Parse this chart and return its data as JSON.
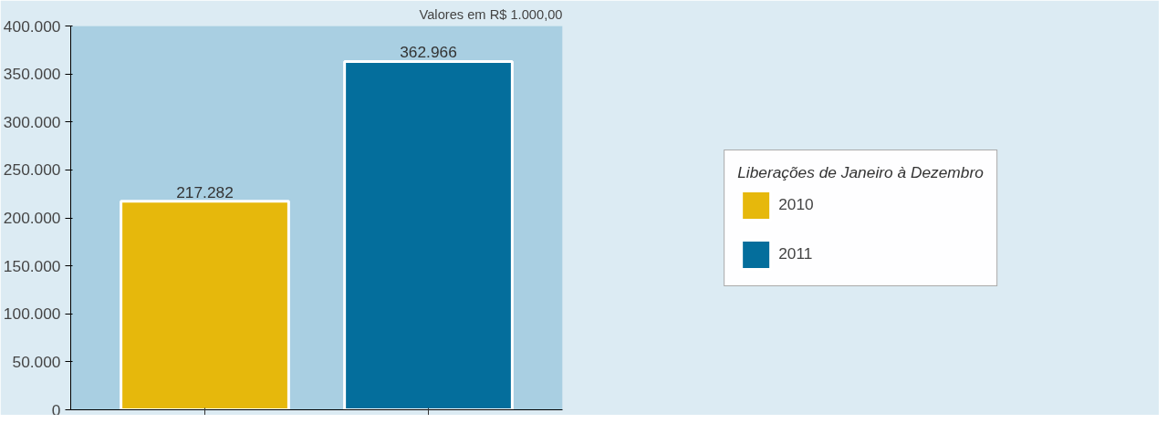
{
  "chart_data": {
    "type": "bar",
    "categories": [
      null,
      null
    ],
    "series": [
      {
        "name": "2010",
        "color": "#e6b80c",
        "values": [
          217282,
          null
        ],
        "value_labels": [
          "217.282",
          null
        ]
      },
      {
        "name": "2011",
        "color": "#046e9c",
        "values": [
          null,
          362966
        ],
        "value_labels": [
          null,
          "362.966"
        ]
      }
    ],
    "legend_title": "Liberações de Janeiro à Dezembro",
    "legend": "right",
    "ylim": [
      0,
      400000
    ],
    "yticks": [
      {
        "value": 0,
        "label": "0"
      },
      {
        "value": 50000,
        "label": "50.000"
      },
      {
        "value": 100000,
        "label": "100.000"
      },
      {
        "value": 150000,
        "label": "150.000"
      },
      {
        "value": 200000,
        "label": "200.000"
      },
      {
        "value": 250000,
        "label": "250.000"
      },
      {
        "value": 300000,
        "label": "300.000"
      },
      {
        "value": 350000,
        "label": "350.000"
      },
      {
        "value": 400000,
        "label": "400.000"
      }
    ],
    "grid": false,
    "annotations": [
      "Valores em R$ 1.000,00"
    ]
  }
}
